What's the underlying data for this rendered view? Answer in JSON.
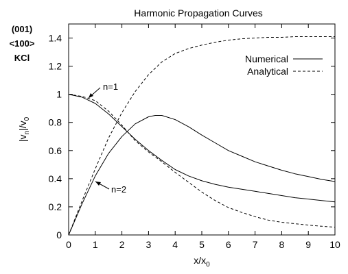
{
  "chart_data": {
    "type": "line",
    "title": "Harmonic Propagation Curves",
    "xlabel_main": "x/x",
    "xlabel_sub": "0",
    "ylabel": {
      "bar1": "|v",
      "sub1": "n",
      "mid": "|/v",
      "sub2": "0"
    },
    "side_label": [
      "(001)",
      "<100>",
      "KCl"
    ],
    "xlim": [
      0,
      10
    ],
    "ylim": [
      0,
      1.5
    ],
    "xticks": [
      0,
      1,
      2,
      3,
      4,
      5,
      6,
      7,
      8,
      9,
      10
    ],
    "yticks": [
      0,
      0.2,
      0.4,
      0.6,
      0.8,
      1,
      1.2,
      1.4
    ],
    "legend": {
      "placement": "top-right",
      "entries": [
        {
          "label": "Numerical",
          "style": "solid"
        },
        {
          "label": "Analytical",
          "style": "dashed"
        }
      ]
    },
    "annotations": [
      {
        "text": "n=1",
        "points_to": [
          1.0,
          0.97
        ]
      },
      {
        "text": "n=2",
        "points_to": [
          0.95,
          0.4
        ]
      }
    ],
    "series": [
      {
        "style": "solid",
        "harmonic": 1,
        "x": [
          0,
          0.5,
          1,
          1.5,
          2,
          2.5,
          3,
          3.5,
          4,
          4.5,
          5,
          5.5,
          6,
          6.5,
          7,
          7.5,
          8,
          8.5,
          9,
          9.5,
          10
        ],
        "y": [
          1.0,
          0.98,
          0.935,
          0.86,
          0.77,
          0.68,
          0.6,
          0.53,
          0.465,
          0.42,
          0.385,
          0.36,
          0.34,
          0.325,
          0.31,
          0.295,
          0.28,
          0.265,
          0.255,
          0.245,
          0.235
        ]
      },
      {
        "style": "dashed",
        "harmonic": 1,
        "x": [
          0,
          0.5,
          1,
          1.5,
          2,
          2.5,
          3,
          3.5,
          4,
          4.5,
          5,
          5.5,
          6,
          6.5,
          7,
          7.5,
          8,
          8.5,
          9,
          9.5,
          10
        ],
        "y": [
          1.0,
          0.985,
          0.955,
          0.88,
          0.78,
          0.67,
          0.59,
          0.52,
          0.445,
          0.375,
          0.305,
          0.245,
          0.195,
          0.16,
          0.13,
          0.105,
          0.09,
          0.08,
          0.07,
          0.062,
          0.055
        ]
      },
      {
        "style": "solid",
        "harmonic": 2,
        "x": [
          0,
          0.5,
          1,
          1.5,
          2,
          2.5,
          3,
          3.25,
          3.5,
          4,
          4.5,
          5,
          5.5,
          6,
          6.5,
          7,
          7.5,
          8,
          8.5,
          9,
          9.5,
          10
        ],
        "y": [
          0,
          0.22,
          0.42,
          0.58,
          0.7,
          0.79,
          0.84,
          0.85,
          0.85,
          0.82,
          0.77,
          0.71,
          0.655,
          0.6,
          0.56,
          0.52,
          0.49,
          0.46,
          0.435,
          0.415,
          0.395,
          0.38
        ]
      },
      {
        "style": "dashed",
        "harmonic": 2,
        "x": [
          0,
          0.5,
          1,
          1.5,
          2,
          2.5,
          3,
          3.5,
          4,
          4.5,
          5,
          5.5,
          6,
          6.5,
          7,
          7.5,
          8,
          8.5,
          9,
          9.5,
          10
        ],
        "y": [
          0,
          0.24,
          0.47,
          0.69,
          0.87,
          1.02,
          1.14,
          1.23,
          1.29,
          1.325,
          1.35,
          1.37,
          1.385,
          1.395,
          1.4,
          1.405,
          1.405,
          1.41,
          1.41,
          1.41,
          1.41
        ]
      }
    ]
  }
}
